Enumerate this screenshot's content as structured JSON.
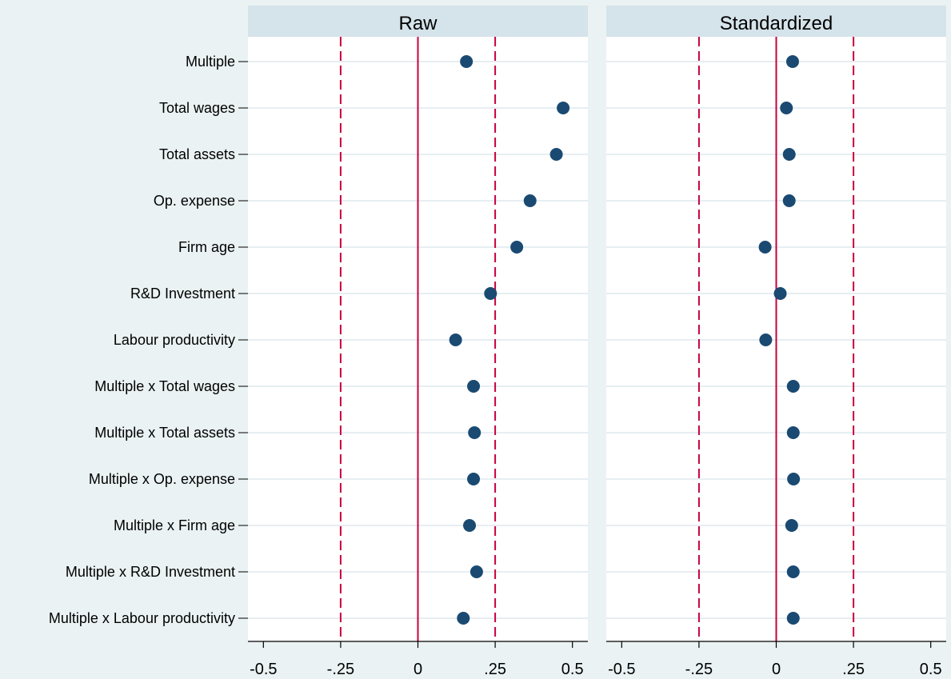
{
  "chart_data": {
    "type": "scatter",
    "categories": [
      "Multiple",
      "Total wages",
      "Total assets",
      "Op. expense",
      "Firm age",
      "R&D Investment",
      "Labour productivity",
      "Multiple x Total wages",
      "Multiple x Total assets",
      "Multiple x Op. expense",
      "Multiple x Firm age",
      "Multiple x R&D Investment",
      "Multiple x Labour productivity"
    ],
    "panels": [
      {
        "title": "Raw",
        "values": [
          0.157,
          0.47,
          0.448,
          0.363,
          0.32,
          0.235,
          0.122,
          0.18,
          0.183,
          0.18,
          0.167,
          0.19,
          0.147
        ]
      },
      {
        "title": "Standardized",
        "values": [
          0.053,
          0.033,
          0.042,
          0.042,
          -0.036,
          0.013,
          -0.034,
          0.055,
          0.055,
          0.056,
          0.05,
          0.055,
          0.055
        ]
      }
    ],
    "xlim": [
      -0.55,
      0.55
    ],
    "x_ticks": [
      -0.5,
      -0.25,
      0,
      0.25,
      0.5
    ],
    "x_tick_labels": [
      "-0.5",
      "-.25",
      "0",
      ".25",
      "0.5"
    ],
    "solid_reference_line": 0,
    "dashed_reference_lines": [
      -0.25,
      0.25
    ],
    "grid": true,
    "xlabel": "",
    "ylabel": "",
    "colors": {
      "marker": "#1a4a72",
      "reference_line": "#c8003c",
      "gridline": "#e6eef2",
      "panel_header": "#d5e3ea",
      "plot_background": "#ffffff",
      "page_background": "#eaf2f3"
    }
  }
}
